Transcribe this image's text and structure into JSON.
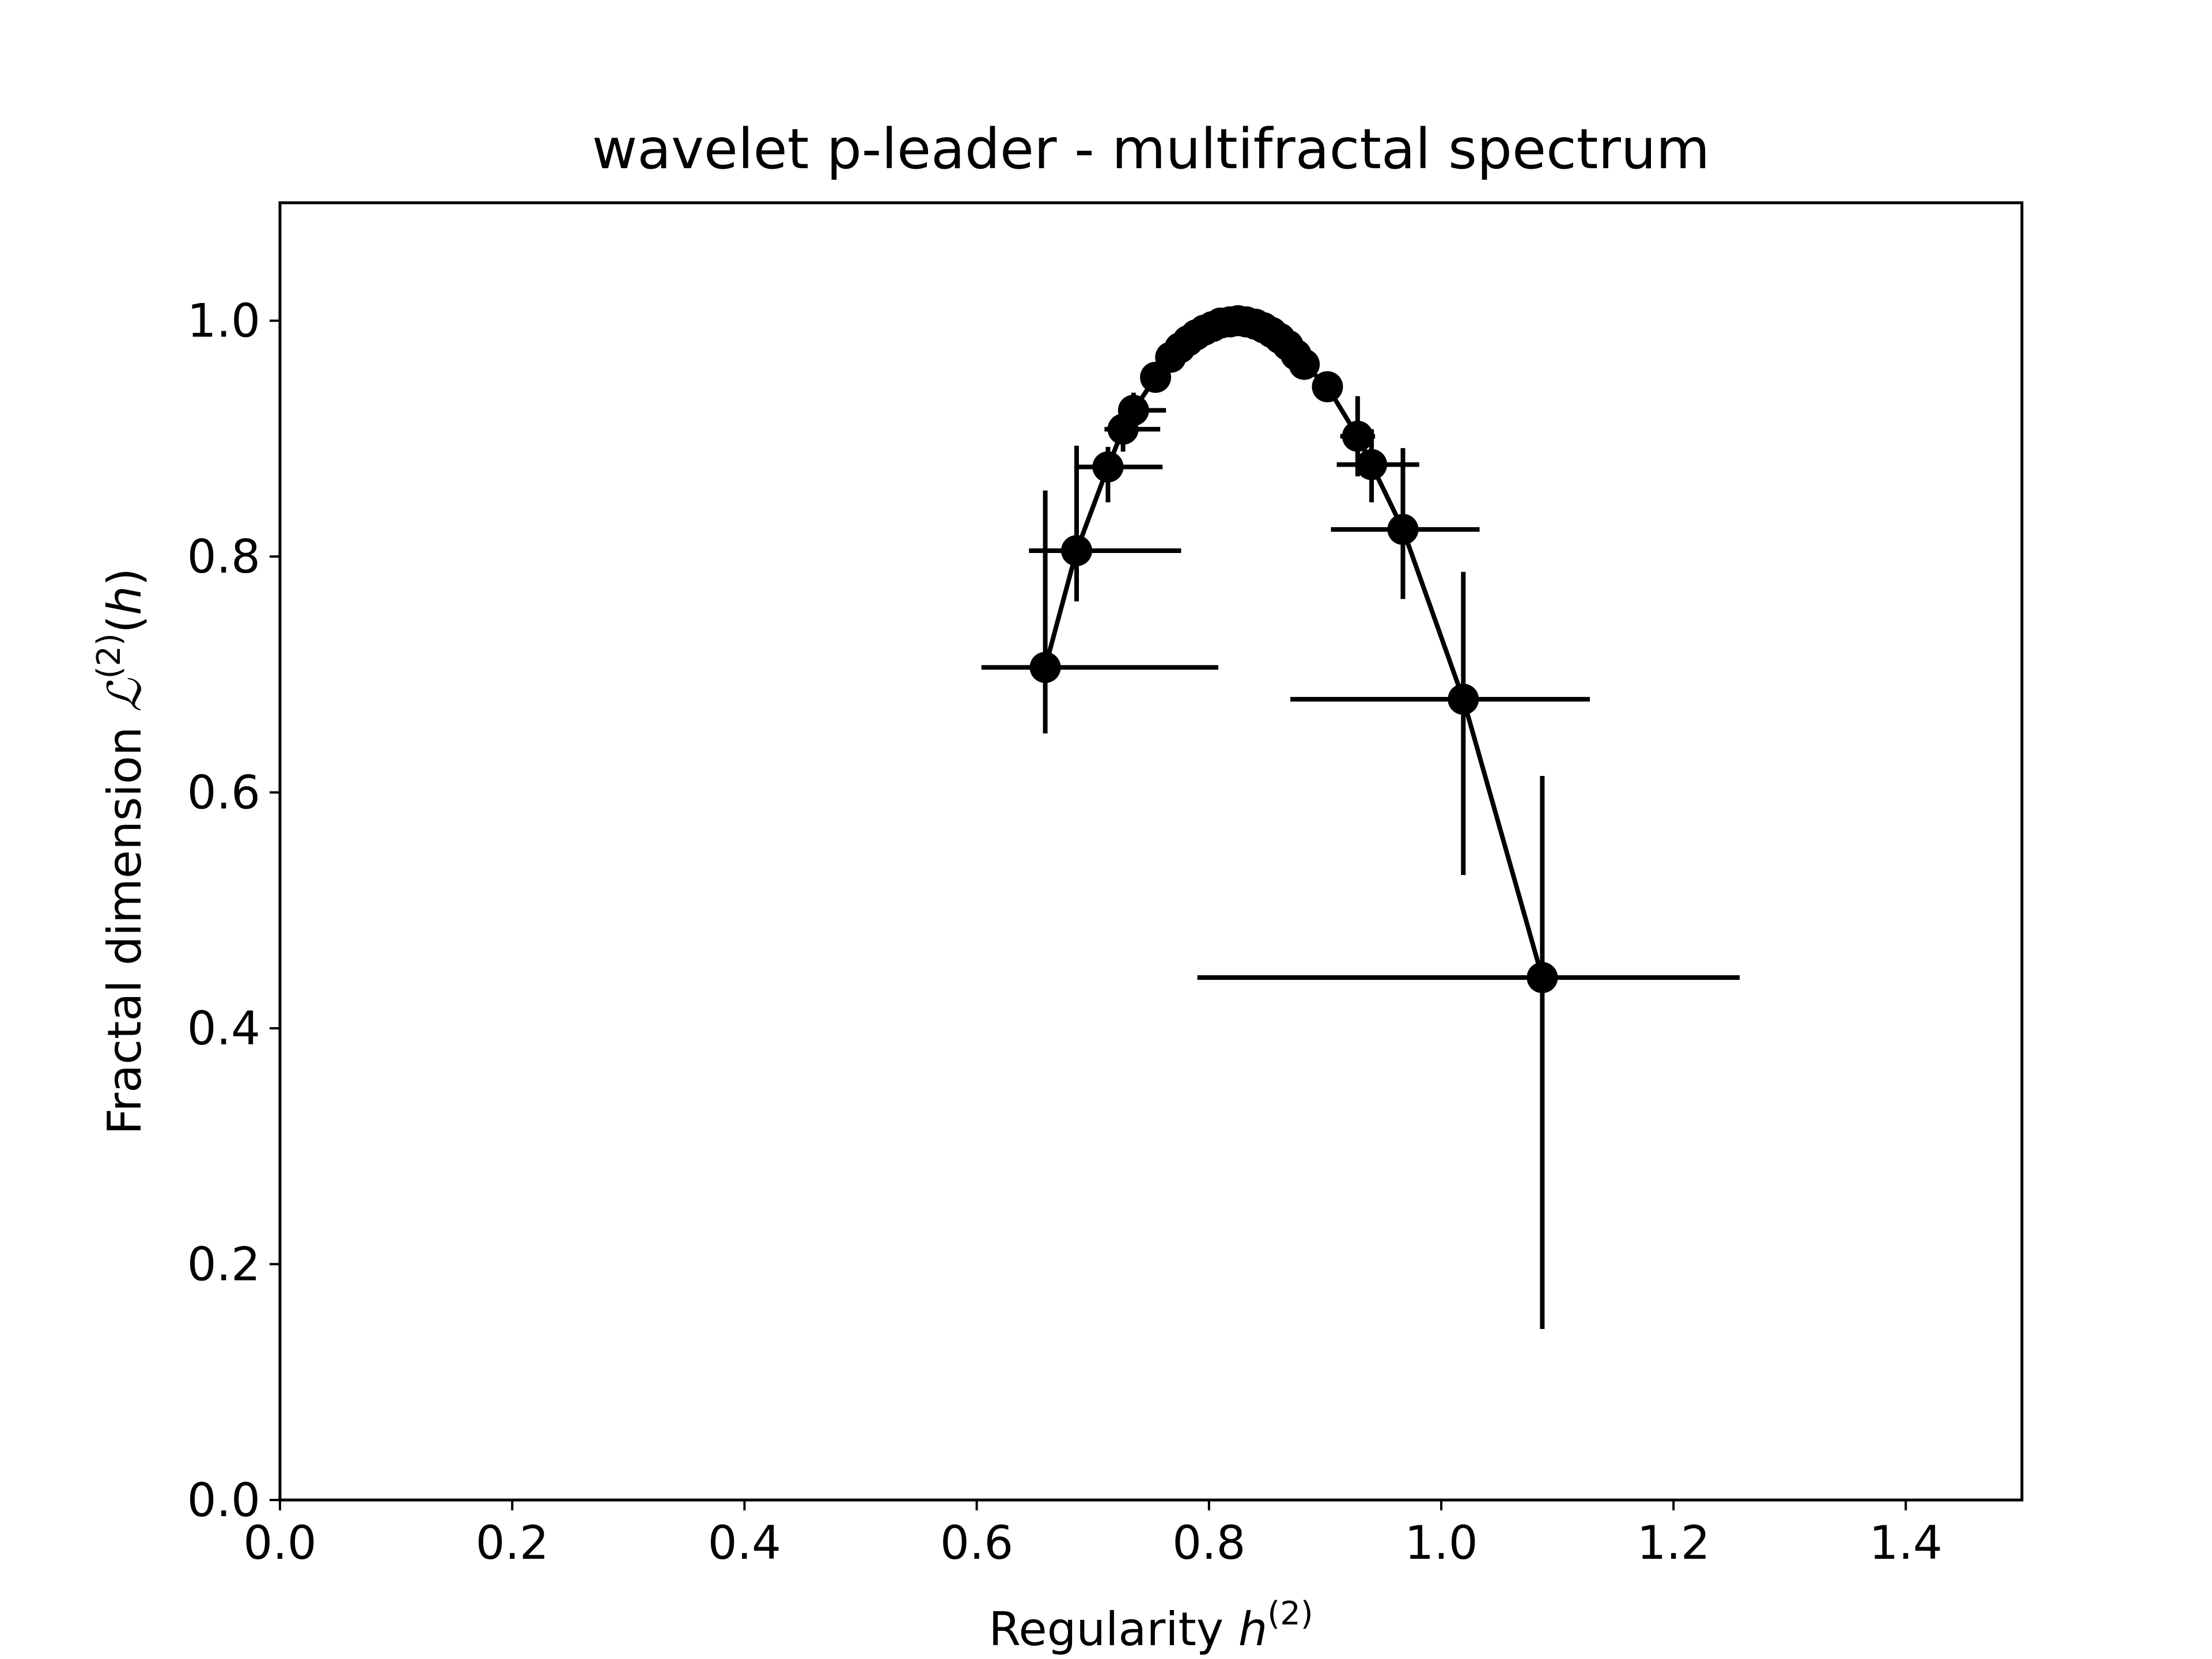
{
  "chart_data": {
    "type": "scatter",
    "title": "wavelet p-leader - multifractal spectrum",
    "xlabel": {
      "text": "Regularity ",
      "var": "h",
      "sup": "(2)"
    },
    "ylabel": {
      "text": "Fractal dimension ",
      "var": "ℒ",
      "sup": "(2)",
      "suffix_open": "(",
      "suffix_var": "h",
      "suffix_close": ")"
    },
    "xlim": [
      0,
      1.5
    ],
    "ylim": [
      0,
      1.1
    ],
    "xticks": [
      0.0,
      0.2,
      0.4,
      0.6,
      0.8,
      1.0,
      1.2,
      1.4
    ],
    "xtick_labels": [
      "0.0",
      "0.2",
      "0.4",
      "0.6",
      "0.8",
      "1.0",
      "1.2",
      "1.4"
    ],
    "yticks": [
      0.0,
      0.2,
      0.4,
      0.6,
      0.8,
      1.0
    ],
    "ytick_labels": [
      "0.0",
      "0.2",
      "0.4",
      "0.6",
      "0.8",
      "1.0"
    ],
    "grid": false,
    "color": "#000000",
    "series": [
      {
        "points": [
          {
            "x": 0.659,
            "y": 0.706,
            "xerr_low": 0.604,
            "xerr_high": 0.808,
            "yerr_low": 0.65,
            "yerr_high": 0.856
          },
          {
            "x": 0.686,
            "y": 0.805,
            "xerr_low": 0.645,
            "xerr_high": 0.776,
            "yerr_low": 0.762,
            "yerr_high": 0.894
          },
          {
            "x": 0.713,
            "y": 0.876,
            "xerr_low": 0.686,
            "xerr_high": 0.76,
            "yerr_low": 0.846,
            "yerr_high": 0.893
          },
          {
            "x": 0.726,
            "y": 0.908,
            "xerr_low": 0.71,
            "xerr_high": 0.758,
            "yerr_low": 0.889,
            "yerr_high": 0.925
          },
          {
            "x": 0.735,
            "y": 0.924,
            "xerr_low": 0.722,
            "xerr_high": 0.763,
            "yerr_low": 0.909,
            "yerr_high": 0.939
          },
          {
            "x": 0.754,
            "y": 0.952,
            "xerr_low": 0.747,
            "xerr_high": 0.762,
            "yerr_low": 0.946,
            "yerr_high": 0.958
          },
          {
            "x": 0.767,
            "y": 0.969
          },
          {
            "x": 0.775,
            "y": 0.977
          },
          {
            "x": 0.782,
            "y": 0.983
          },
          {
            "x": 0.789,
            "y": 0.988
          },
          {
            "x": 0.796,
            "y": 0.992
          },
          {
            "x": 0.803,
            "y": 0.995
          },
          {
            "x": 0.81,
            "y": 0.998
          },
          {
            "x": 0.818,
            "y": 0.999
          },
          {
            "x": 0.825,
            "y": 1.0
          },
          {
            "x": 0.832,
            "y": 0.999
          },
          {
            "x": 0.84,
            "y": 0.997
          },
          {
            "x": 0.847,
            "y": 0.994
          },
          {
            "x": 0.854,
            "y": 0.99
          },
          {
            "x": 0.861,
            "y": 0.985
          },
          {
            "x": 0.868,
            "y": 0.979
          },
          {
            "x": 0.875,
            "y": 0.971
          },
          {
            "x": 0.882,
            "y": 0.963
          },
          {
            "x": 0.902,
            "y": 0.944,
            "xerr_low": 0.894,
            "xerr_high": 0.91,
            "yerr_low": 0.932,
            "yerr_high": 0.956
          },
          {
            "x": 0.928,
            "y": 0.902,
            "xerr_low": 0.913,
            "xerr_high": 0.943,
            "yerr_low": 0.868,
            "yerr_high": 0.936
          },
          {
            "x": 0.94,
            "y": 0.878,
            "xerr_low": 0.91,
            "xerr_high": 0.981,
            "yerr_low": 0.846,
            "yerr_high": 0.908
          },
          {
            "x": 0.967,
            "y": 0.823,
            "xerr_low": 0.905,
            "xerr_high": 1.033,
            "yerr_low": 0.764,
            "yerr_high": 0.892
          },
          {
            "x": 1.019,
            "y": 0.679,
            "xerr_low": 0.87,
            "xerr_high": 1.128,
            "yerr_low": 0.53,
            "yerr_high": 0.787
          },
          {
            "x": 1.087,
            "y": 0.443,
            "xerr_low": 0.79,
            "xerr_high": 1.257,
            "yerr_low": 0.145,
            "yerr_high": 0.614
          }
        ]
      }
    ]
  }
}
